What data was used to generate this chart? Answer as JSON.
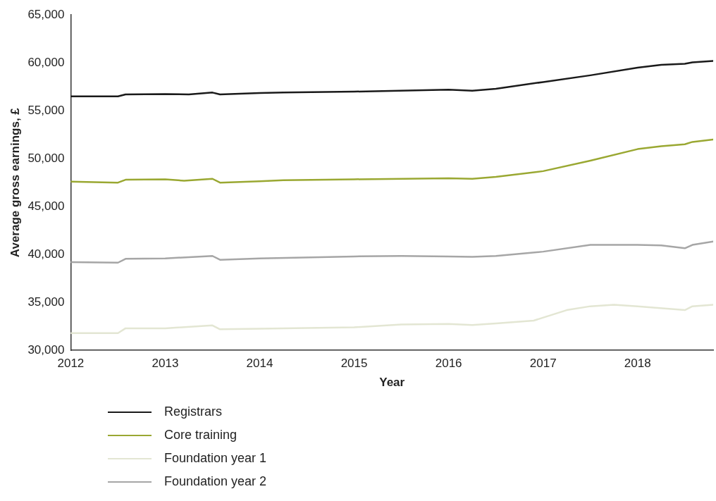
{
  "chart_data": {
    "type": "line",
    "xlabel": "Year",
    "ylabel": "Average gross earnings, £",
    "xlim": [
      2012,
      2018.8
    ],
    "xticks": [
      2012,
      2013,
      2014,
      2015,
      2016,
      2017,
      2018
    ],
    "ylim": [
      30000,
      65000
    ],
    "yticks": [
      {
        "value": 30000,
        "label": "30,000"
      },
      {
        "value": 35000,
        "label": "35,000"
      },
      {
        "value": 40000,
        "label": "40,000"
      },
      {
        "value": 45000,
        "label": "45,000"
      },
      {
        "value": 50000,
        "label": "50,000"
      },
      {
        "value": 55000,
        "label": "55,000"
      },
      {
        "value": 60000,
        "label": "60,000"
      },
      {
        "value": 65000,
        "label": "65,000"
      }
    ],
    "grid": false,
    "legend": "bottom left",
    "marker": "none",
    "line_style": "solid",
    "series": [
      {
        "name": "Registrars",
        "color": "#1a1a1a",
        "x": [
          2012,
          2012.5,
          2012.58,
          2013,
          2013.25,
          2013.5,
          2013.58,
          2014,
          2014.25,
          2015,
          2016,
          2016.25,
          2016.5,
          2017,
          2017.5,
          2018,
          2018.25,
          2018.5,
          2018.58,
          2018.8
        ],
        "values": [
          56500,
          56500,
          56700,
          56750,
          56700,
          56900,
          56700,
          56850,
          56900,
          57000,
          57200,
          57100,
          57300,
          58000,
          58700,
          59500,
          59800,
          59900,
          60050,
          60200
        ]
      },
      {
        "name": "Core training",
        "color": "#9aa832",
        "x": [
          2012,
          2012.5,
          2012.58,
          2013,
          2013.2,
          2013.5,
          2013.58,
          2014,
          2014.25,
          2015,
          2016,
          2016.25,
          2016.5,
          2017,
          2017.5,
          2018,
          2018.25,
          2018.5,
          2018.58,
          2018.8
        ],
        "values": [
          47600,
          47500,
          47800,
          47850,
          47700,
          47900,
          47500,
          47650,
          47750,
          47850,
          47950,
          47900,
          48100,
          48700,
          49800,
          51000,
          51300,
          51500,
          51750,
          52000
        ]
      },
      {
        "name": "Foundation year 1",
        "color": "#e3e6d3",
        "x": [
          2012,
          2012.5,
          2012.58,
          2013,
          2013.5,
          2013.58,
          2014,
          2015,
          2015.5,
          2016,
          2016.25,
          2016.5,
          2016.9,
          2017.25,
          2017.5,
          2017.75,
          2018,
          2018.5,
          2018.58,
          2018.8
        ],
        "values": [
          31800,
          31800,
          32300,
          32300,
          32600,
          32200,
          32250,
          32400,
          32700,
          32750,
          32650,
          32800,
          33100,
          34200,
          34600,
          34750,
          34600,
          34200,
          34600,
          34750
        ]
      },
      {
        "name": "Foundation year 2",
        "color": "#a6a6a6",
        "x": [
          2012,
          2012.5,
          2012.58,
          2013,
          2013.5,
          2013.58,
          2014,
          2015,
          2015.5,
          2016,
          2016.25,
          2016.5,
          2017,
          2017.5,
          2018,
          2018.25,
          2018.5,
          2018.58,
          2018.8
        ],
        "values": [
          39200,
          39150,
          39550,
          39600,
          39850,
          39450,
          39600,
          39800,
          39850,
          39800,
          39750,
          39850,
          40300,
          41000,
          41000,
          40950,
          40650,
          41000,
          41350
        ]
      }
    ]
  }
}
